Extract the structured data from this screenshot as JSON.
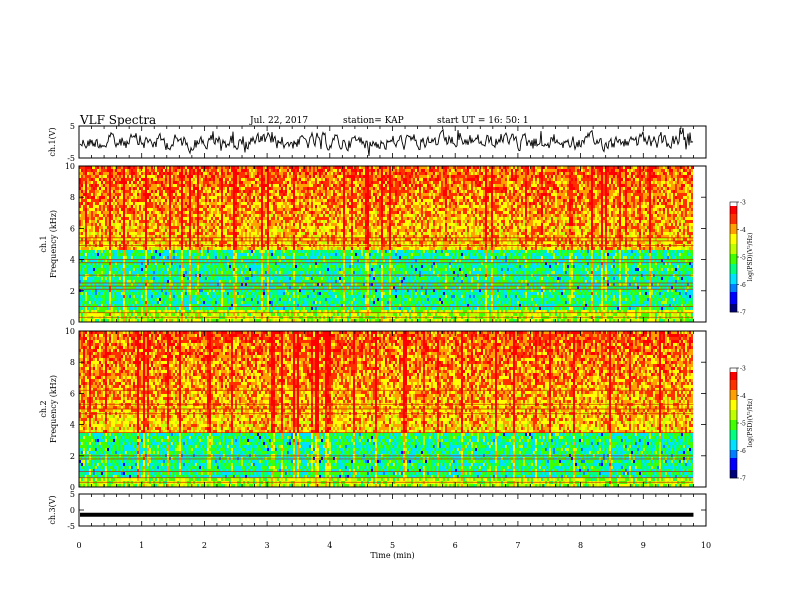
{
  "header": {
    "title": "VLF Spectra",
    "date": "Jul. 22, 2017",
    "station": "station= KAP",
    "start_ut": "start UT = 16: 50: 1"
  },
  "chart_data": [
    {
      "type": "line",
      "panel": "ch1-waveform",
      "ylabel": "ch.1(V)",
      "ylim": [
        -5,
        5
      ],
      "yticks": [
        "5",
        "-5"
      ],
      "xlim": [
        0,
        10
      ],
      "color": "#000000",
      "description_values": "noisy waveform, amplitude ~ +/-5 V, 0 to 9.8 min"
    },
    {
      "type": "heatmap",
      "panel": "ch1-spectrogram",
      "ylabel": "ch.1\nFrequency (kHz)",
      "ylabel_line1": "ch.1",
      "ylabel_line2": "Frequency (kHz)",
      "ylim": [
        0,
        10
      ],
      "yticks": [
        "0",
        "2",
        "4",
        "6",
        "8",
        "10"
      ],
      "xlim": [
        0,
        10
      ],
      "data_end_min": 9.8,
      "colorbar": {
        "label": "log(PSD)(V²/Hz)",
        "range": [
          -7,
          -3
        ],
        "ticks": [
          "-3",
          "-4",
          "-5",
          "-6",
          "-7"
        ]
      },
      "bands_khz": [
        0.3,
        0.6,
        1.0,
        2.1,
        2.3,
        2.5,
        3.0,
        3.8,
        4.0,
        4.9,
        5.2,
        5.4
      ],
      "low_power_band_khz": [
        0.8,
        4.8
      ],
      "high_power_band_khz": [
        4.8,
        10
      ]
    },
    {
      "type": "heatmap",
      "panel": "ch2-spectrogram",
      "ylabel_line1": "ch.2",
      "ylabel_line2": "Frequency (kHz)",
      "ylim": [
        0,
        10
      ],
      "yticks": [
        "0",
        "2",
        "4",
        "6",
        "8",
        "10"
      ],
      "xlim": [
        0,
        10
      ],
      "data_end_min": 9.8,
      "colorbar": {
        "label": "log(PSD)(V²/Hz)",
        "range": [
          -7,
          -3
        ],
        "ticks": [
          "-3",
          "-4",
          "-5",
          "-6",
          "-7"
        ]
      },
      "bands_khz": [
        0.3,
        0.6,
        1.0,
        1.8,
        2.0,
        3.5,
        4.7,
        5.0,
        5.3,
        6.2
      ],
      "low_power_band_khz": [
        0.6,
        3.6
      ],
      "high_power_band_khz": [
        3.6,
        10
      ]
    },
    {
      "type": "line",
      "panel": "ch3-waveform",
      "ylabel": "ch.3(V)",
      "ylim": [
        -5,
        5
      ],
      "yticks": [
        "5",
        "0",
        "-5"
      ],
      "xlim": [
        0,
        10
      ],
      "values_constant": -1.5,
      "color": "#000000"
    }
  ],
  "xaxis": {
    "label": "Time (min)",
    "ticks": [
      "0",
      "1",
      "2",
      "3",
      "4",
      "5",
      "6",
      "7",
      "8",
      "9",
      "10"
    ],
    "range": [
      0,
      10
    ]
  },
  "colormap": [
    "#00007a",
    "#0000ff",
    "#0080ff",
    "#00e0ff",
    "#00ff80",
    "#40ff00",
    "#c0ff00",
    "#ffff00",
    "#ffa000",
    "#ff3000",
    "#ff0000",
    "#ffffff"
  ]
}
